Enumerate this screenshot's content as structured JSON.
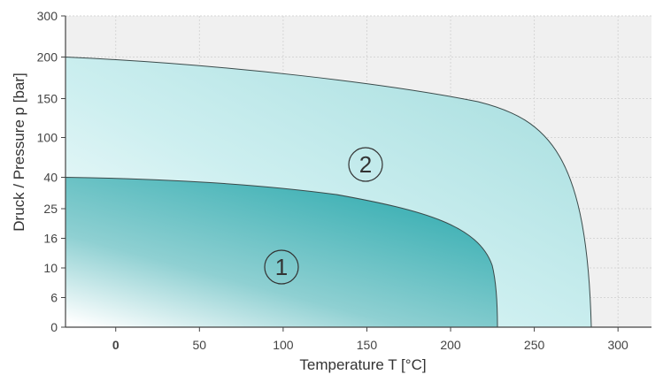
{
  "chart_data": {
    "type": "area",
    "xlabel": "Temperature T   [°C]",
    "ylabel": "Druck / Pressure p   [bar]",
    "xlim": [
      -30,
      320
    ],
    "x_ticks": [
      {
        "value": 0,
        "label": "0",
        "bold": true
      },
      {
        "value": 50,
        "label": "50"
      },
      {
        "value": 100,
        "label": "100"
      },
      {
        "value": 150,
        "label": "150"
      },
      {
        "value": 200,
        "label": "200"
      },
      {
        "value": 250,
        "label": "250"
      },
      {
        "value": 300,
        "label": "300"
      }
    ],
    "y_ticks": [
      "0",
      "6",
      "10",
      "16",
      "25",
      "40",
      "100",
      "150",
      "200",
      "300"
    ],
    "grid": true,
    "background_color": "#f0f0f0",
    "regions": [
      {
        "label": "2",
        "label_at": {
          "x": 150,
          "y_tick_index": 6.25
        },
        "color": "#a8dfe0",
        "boundary": [
          {
            "x": -30,
            "y": "200"
          },
          {
            "x": 50,
            "y": "~190"
          },
          {
            "x": 150,
            "y": "~165"
          },
          {
            "x": 230,
            "y": "~110"
          },
          {
            "x": 275,
            "y": "~25"
          },
          {
            "x": 285,
            "y": "0"
          }
        ]
      },
      {
        "label": "1",
        "label_at": {
          "x": 100,
          "y_tick_index": 2.1
        },
        "color": "#44b4b8",
        "boundary": [
          {
            "x": -30,
            "y": "40"
          },
          {
            "x": 50,
            "y": "~38"
          },
          {
            "x": 150,
            "y": "~25"
          },
          {
            "x": 200,
            "y": "~18"
          },
          {
            "x": 225,
            "y": "~8"
          },
          {
            "x": 230,
            "y": "0"
          }
        ]
      }
    ]
  }
}
